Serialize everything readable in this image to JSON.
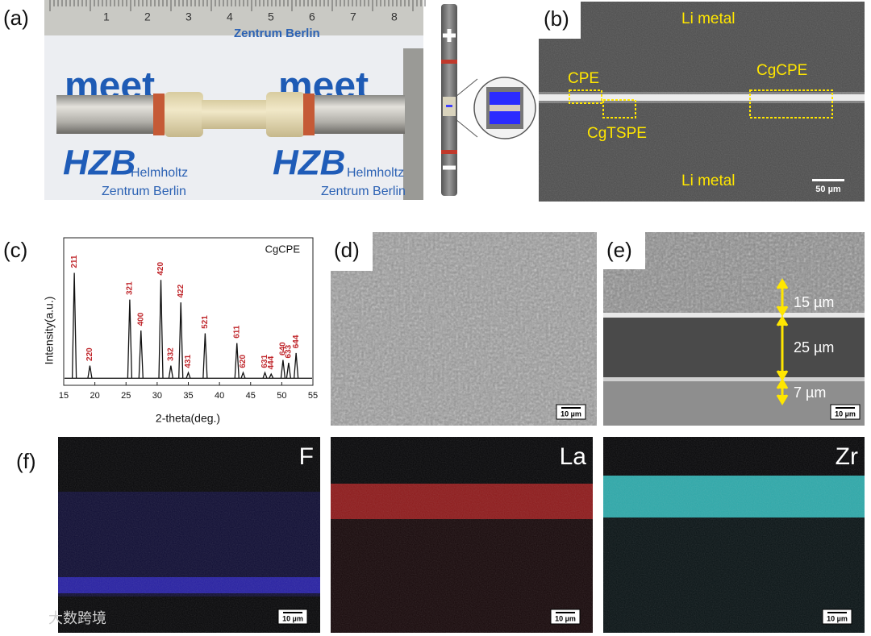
{
  "panels": {
    "a": {
      "label": "(a)",
      "ruler": [
        "1",
        "2",
        "3",
        "4",
        "5",
        "6",
        "7",
        "8"
      ],
      "logo": "meet",
      "hzb": "HZB",
      "helmholtz": "Helmholtz",
      "berlin": "Zentrum Berlin",
      "top_text": "Zentrum Berlin"
    },
    "b": {
      "label": "(b)",
      "li_top": "Li metal",
      "li_bottom": "Li metal",
      "cpe": "CPE",
      "cgtspe": "CgTSPE",
      "cgcpe": "CgCPE",
      "scale": "50 µm"
    },
    "c": {
      "label": "(c)"
    },
    "d": {
      "label": "(d)",
      "scale": "10 µm"
    },
    "e": {
      "label": "(e)",
      "thickness": [
        "15 µm",
        "25 µm",
        "7 µm"
      ],
      "scale": "10 µm"
    },
    "f": {
      "label": "(f)",
      "maps": [
        {
          "element": "F",
          "scale": "10 µm"
        },
        {
          "element": "La",
          "scale": "10 µm"
        },
        {
          "element": "Zr",
          "scale": "10 µm"
        }
      ]
    }
  },
  "watermark": "大数跨境",
  "chart_data": {
    "type": "xrd",
    "legend": "CgCPE",
    "xlabel": "2-theta(deg.)",
    "ylabel": "Intensity(a.u.)",
    "xlim": [
      15,
      55
    ],
    "xticks": [
      15,
      20,
      25,
      30,
      35,
      40,
      45,
      50,
      55
    ],
    "ylim": [
      -5,
      100
    ],
    "color": "#111111",
    "label_color": "#c0282d",
    "peaks": [
      {
        "x": 16.7,
        "height": 75,
        "label": "211"
      },
      {
        "x": 19.2,
        "height": 9,
        "label": "220"
      },
      {
        "x": 25.6,
        "height": 56,
        "label": "321"
      },
      {
        "x": 27.4,
        "height": 34,
        "label": "400"
      },
      {
        "x": 30.6,
        "height": 70,
        "label": "420"
      },
      {
        "x": 32.2,
        "height": 9,
        "label": "332"
      },
      {
        "x": 33.8,
        "height": 54,
        "label": "422"
      },
      {
        "x": 35.0,
        "height": 4,
        "label": "431"
      },
      {
        "x": 37.7,
        "height": 32,
        "label": "521"
      },
      {
        "x": 42.8,
        "height": 25,
        "label": "611"
      },
      {
        "x": 43.8,
        "height": 4,
        "label": "620"
      },
      {
        "x": 47.3,
        "height": 4,
        "label": "631"
      },
      {
        "x": 48.3,
        "height": 3,
        "label": "444"
      },
      {
        "x": 50.2,
        "height": 13,
        "label": "640"
      },
      {
        "x": 51.1,
        "height": 11,
        "label": "633"
      },
      {
        "x": 52.3,
        "height": 18,
        "label": "644"
      }
    ]
  }
}
